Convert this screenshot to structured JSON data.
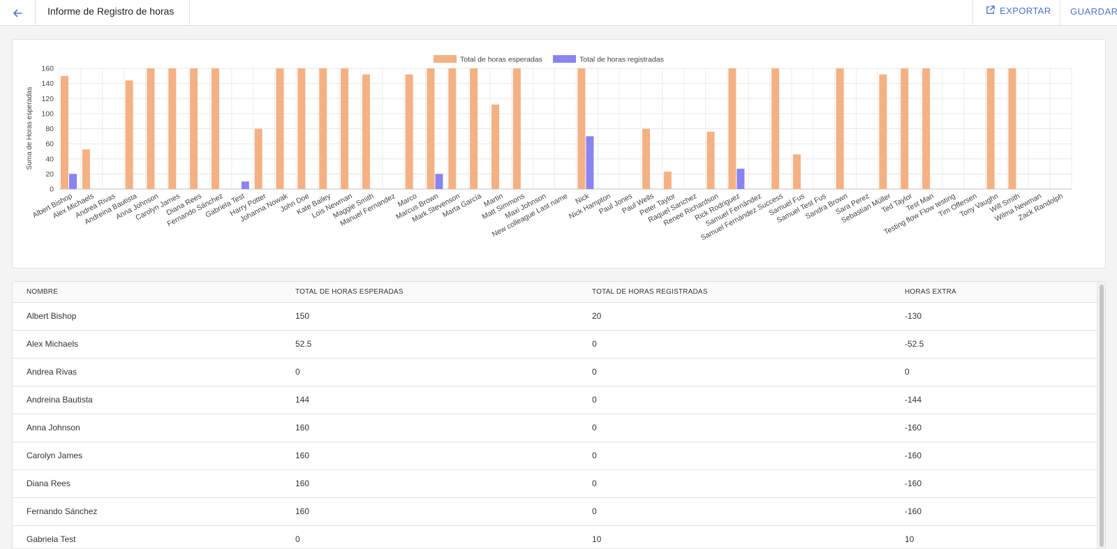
{
  "header": {
    "title": "Informe de Registro de horas",
    "back_icon": "arrow-left-icon",
    "export_label": "EXPORTAR",
    "export_icon": "external-link-icon",
    "save_label": "GUARDAR",
    "accent_color": "#4e73c8"
  },
  "chart_data": {
    "type": "bar",
    "title": "",
    "xlabel": "",
    "ylabel": "Suma de Horas esperadas",
    "ylim": [
      0,
      160
    ],
    "yticks": [
      0,
      20,
      40,
      60,
      80,
      100,
      120,
      140,
      160
    ],
    "grid": true,
    "legend_position": "top-center",
    "categories": [
      "Albert Bishop",
      "Alex Michaels",
      "Andrea Rivas",
      "Andreina Bautista",
      "Anna Johnson",
      "Carolyn James",
      "Diana Rees",
      "Fernando Sánchez",
      "Gabriela Test",
      "Harry Potter",
      "Johanna Nowak",
      "John Doe",
      "Kate Bailey",
      "Lois Newman",
      "Maggie Smith",
      "Manuel Fernandez",
      "Marco",
      "Marcus Brown",
      "Mark Stevenson",
      "Marta García",
      "Martin",
      "Matt Simmons",
      "Maxi Johnson",
      "New colleague Last name",
      "Nick",
      "Nick Hampton",
      "Paul Jones",
      "Paul Wells",
      "Peter Taylor",
      "Raquel Sanchez",
      "Renee Richardson",
      "Rick Rodriguez",
      "Samuel Fernández",
      "Samuel Fernández Success",
      "Samuel Fus",
      "Samuel Test Fus",
      "Sandra Brown",
      "Sara Perez",
      "Sebastian Müller",
      "Ted Taylor",
      "Test Man",
      "Testing flow Flow testing",
      "Tim Offersen",
      "Tony Vaughn",
      "Will Smith",
      "Wilma Newman",
      "Zack Randolph"
    ],
    "series": [
      {
        "name": "Total de horas esperadas",
        "color": "#f4b183",
        "values": [
          150,
          52.5,
          0,
          144,
          160,
          160,
          160,
          160,
          0,
          80,
          160,
          160,
          160,
          160,
          152,
          0,
          152,
          160,
          160,
          160,
          112,
          160,
          0,
          0,
          160,
          0,
          0,
          80,
          23,
          0,
          76,
          160,
          0,
          160,
          46,
          0,
          160,
          0,
          152,
          160,
          160,
          0,
          0,
          160,
          160,
          0,
          0
        ]
      },
      {
        "name": "Total de horas registradas",
        "color": "#8a84f0",
        "values": [
          20,
          0,
          0,
          0,
          0,
          0,
          0,
          0,
          10,
          0,
          0,
          0,
          0,
          0,
          0,
          0,
          0,
          20,
          0,
          0,
          0,
          0,
          0,
          0,
          70,
          0,
          0,
          0,
          0,
          0,
          0,
          27,
          0,
          0,
          0,
          0,
          0,
          0,
          0,
          0,
          0,
          0,
          0,
          0,
          0,
          0,
          0
        ]
      }
    ]
  },
  "table": {
    "columns": [
      "NOMBRE",
      "TOTAL DE HORAS ESPERADAS",
      "TOTAL DE HORAS REGISTRADAS",
      "HORAS EXTRA"
    ],
    "rows": [
      [
        "Albert Bishop",
        "150",
        "20",
        "-130"
      ],
      [
        "Alex Michaels",
        "52.5",
        "0",
        "-52.5"
      ],
      [
        "Andrea Rivas",
        "0",
        "0",
        "0"
      ],
      [
        "Andreina Bautista",
        "144",
        "0",
        "-144"
      ],
      [
        "Anna Johnson",
        "160",
        "0",
        "-160"
      ],
      [
        "Carolyn James",
        "160",
        "0",
        "-160"
      ],
      [
        "Diana Rees",
        "160",
        "0",
        "-160"
      ],
      [
        "Fernando Sánchez",
        "160",
        "0",
        "-160"
      ],
      [
        "Gabriela Test",
        "0",
        "10",
        "10"
      ]
    ]
  }
}
